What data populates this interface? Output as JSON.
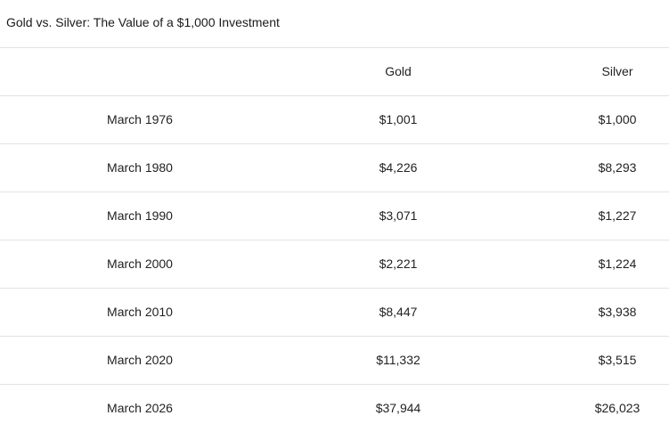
{
  "title": "Gold vs. Silver: The Value of a $1,000 Investment",
  "table": {
    "header": [
      "Gold",
      "Silver"
    ],
    "rows": [
      [
        "March 1976",
        "$1,001",
        "$1,000"
      ],
      [
        "March 1980",
        "$4,226",
        "$8,293"
      ],
      [
        "March 1990",
        "$3,071",
        "$1,227"
      ],
      [
        "March 2000",
        "$2,221",
        "$1,224"
      ],
      [
        "March 2010",
        "$8,447",
        "$3,938"
      ],
      [
        "March 2020",
        "$11,332",
        "$3,515"
      ],
      [
        "March 2026",
        "$37,944",
        "$26,023"
      ]
    ]
  }
}
